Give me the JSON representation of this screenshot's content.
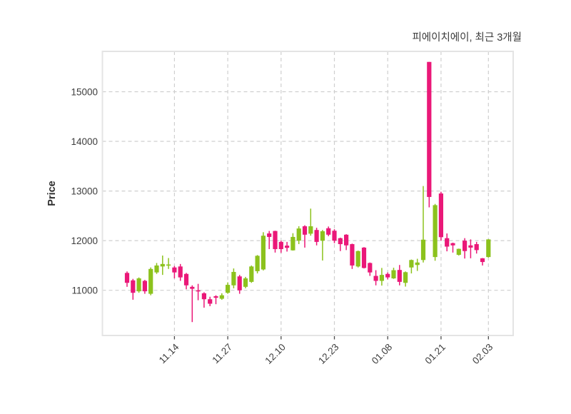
{
  "header": {
    "title": "피에이치에이, 최근 3개월"
  },
  "chart_data": {
    "type": "candlestick",
    "title": "피에이치에이, 최근 3개월",
    "ylabel": "Price",
    "yticks": [
      11000,
      12000,
      13000,
      14000,
      15000
    ],
    "ylim": [
      10090,
      15812
    ],
    "xtick_labels": [
      "11.14",
      "11.27",
      "12.10",
      "12.23",
      "01.08",
      "01.21",
      "02.03"
    ],
    "xtick_indices": [
      8,
      17,
      26,
      35,
      44,
      53,
      61
    ],
    "grid": true,
    "legend": "none",
    "colors": {
      "up": "#8cc21d",
      "down": "#ea1878",
      "grid": "#cfcfcf",
      "border": "#e4e4e4",
      "text": "#3d3d3d",
      "background": "#ffffff"
    },
    "candles_format": [
      "open",
      "high",
      "low",
      "close"
    ],
    "candles": [
      [
        11350,
        11380,
        11070,
        11150
      ],
      [
        11200,
        11230,
        10810,
        10950
      ],
      [
        10980,
        11260,
        10950,
        11240
      ],
      [
        11190,
        11210,
        10930,
        10980
      ],
      [
        10930,
        11460,
        10900,
        11430
      ],
      [
        11360,
        11550,
        11330,
        11500
      ],
      [
        11480,
        11700,
        11310,
        11530
      ],
      [
        11500,
        11650,
        11430,
        11520
      ],
      [
        11460,
        11490,
        11240,
        11360
      ],
      [
        11480,
        11530,
        11190,
        11260
      ],
      [
        11330,
        11350,
        11020,
        11100
      ],
      [
        11070,
        11100,
        10360,
        11030
      ],
      [
        11000,
        11130,
        10800,
        10980
      ],
      [
        10940,
        10960,
        10650,
        10820
      ],
      [
        10820,
        10870,
        10680,
        10730
      ],
      [
        10880,
        10900,
        10720,
        10850
      ],
      [
        10830,
        10940,
        10810,
        10900
      ],
      [
        10950,
        11160,
        10930,
        11110
      ],
      [
        11100,
        11440,
        11040,
        11370
      ],
      [
        11280,
        11310,
        10930,
        11000
      ],
      [
        11070,
        11270,
        11040,
        11240
      ],
      [
        11170,
        11500,
        11150,
        11480
      ],
      [
        11385,
        11710,
        11340,
        11695
      ],
      [
        11420,
        12170,
        11400,
        12100
      ],
      [
        12145,
        12195,
        11830,
        12075
      ],
      [
        12195,
        12200,
        11760,
        11830
      ],
      [
        11975,
        12000,
        11755,
        11830
      ],
      [
        11900,
        11975,
        11780,
        11855
      ],
      [
        11805,
        12150,
        11800,
        12075
      ],
      [
        12000,
        12290,
        11930,
        12245
      ],
      [
        12290,
        12310,
        11860,
        12120
      ],
      [
        12140,
        12645,
        12100,
        12290
      ],
      [
        12215,
        12260,
        11905,
        11975
      ],
      [
        12000,
        12215,
        11600,
        12190
      ],
      [
        12250,
        12285,
        12090,
        12120
      ],
      [
        12200,
        12230,
        11950,
        12000
      ],
      [
        12050,
        12060,
        11790,
        11930
      ],
      [
        12120,
        12130,
        11810,
        11905
      ],
      [
        11930,
        11940,
        11430,
        11500
      ],
      [
        11480,
        11800,
        11460,
        11790
      ],
      [
        11860,
        11870,
        11440,
        11450
      ],
      [
        11550,
        11560,
        11290,
        11360
      ],
      [
        11290,
        11405,
        11100,
        11190
      ],
      [
        11190,
        11450,
        11095,
        11310
      ],
      [
        11330,
        11360,
        11220,
        11260
      ],
      [
        11240,
        11455,
        11230,
        11405
      ],
      [
        11410,
        11510,
        11100,
        11170
      ],
      [
        11150,
        11380,
        11075,
        11365
      ],
      [
        11460,
        11620,
        11340,
        11610
      ],
      [
        11510,
        11635,
        11390,
        11560
      ],
      [
        11610,
        13100,
        11560,
        12020
      ],
      [
        15600,
        15600,
        12670,
        12880
      ],
      [
        11670,
        12740,
        11595,
        12715
      ],
      [
        12950,
        12985,
        12000,
        12070
      ],
      [
        12050,
        12145,
        11785,
        11880
      ],
      [
        11950,
        11960,
        11760,
        11905
      ],
      [
        11715,
        11840,
        11700,
        11835
      ],
      [
        12000,
        12050,
        11640,
        11790
      ],
      [
        11905,
        12025,
        11645,
        11860
      ],
      [
        11930,
        11975,
        11740,
        11810
      ],
      [
        11645,
        11650,
        11500,
        11570
      ],
      [
        11670,
        12030,
        11660,
        12025
      ]
    ]
  }
}
